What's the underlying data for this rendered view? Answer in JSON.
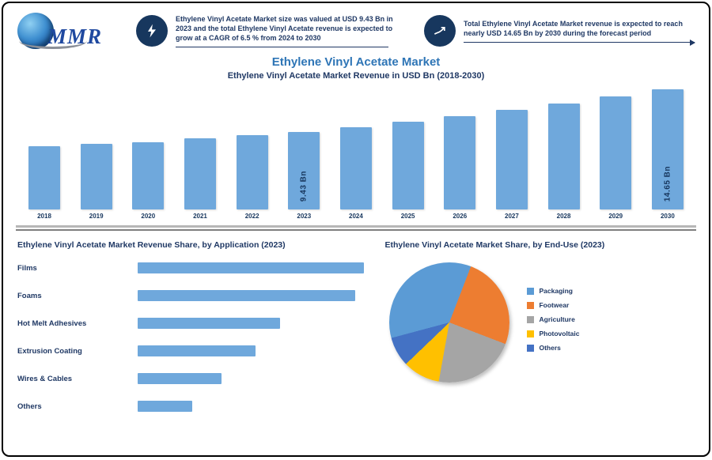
{
  "brand": {
    "logo_text": "MMR"
  },
  "header": {
    "highlight1": "Ethylene Vinyl Acetate Market size was valued at USD 9.43 Bn in 2023 and the total Ethylene Vinyl Acetate revenue is expected to grow at a CAGR of 6.5 % from 2024 to 2030",
    "highlight2": "Total Ethylene Vinyl Acetate Market revenue is expected to reach nearly USD 14.65 Bn by 2030 during the forecast period"
  },
  "title": "Ethylene Vinyl Acetate Market",
  "chart_data": [
    {
      "type": "bar",
      "title": "Ethylene Vinyl Acetate Market Revenue in USD Bn (2018-2030)",
      "categories": [
        "2018",
        "2019",
        "2020",
        "2021",
        "2022",
        "2023",
        "2024",
        "2025",
        "2026",
        "2027",
        "2028",
        "2029",
        "2030"
      ],
      "values": [
        7.7,
        7.99,
        8.24,
        8.68,
        9.05,
        9.43,
        10.04,
        10.7,
        11.39,
        12.13,
        12.92,
        13.76,
        14.65
      ],
      "ylabel": "Revenue (USD Bn)",
      "ylim": [
        0,
        16
      ],
      "grid": false,
      "bar_color": "#6FA8DC",
      "callouts": [
        {
          "category": "2023",
          "text": "9.43 Bn"
        },
        {
          "category": "2030",
          "text": "14.65 Bn"
        }
      ]
    },
    {
      "type": "bar",
      "orientation": "horizontal",
      "title": "Ethylene Vinyl Acetate Market Revenue Share, by Application (2023)",
      "categories": [
        "Films",
        "Foams",
        "Hot Melt Adhesives",
        "Extrusion Coating",
        "Wires & Cables",
        "Others"
      ],
      "values": [
        100,
        96,
        63,
        52,
        37,
        24
      ],
      "note": "relative share, value axis not shown",
      "bar_color": "#6FA8DC"
    },
    {
      "type": "pie",
      "title": "Ethylene Vinyl Acetate Market Share, by End-Use (2023)",
      "labels": [
        "Packaging",
        "Footwear",
        "Agriculture",
        "Photovoltaic",
        "Others"
      ],
      "values": [
        35,
        25,
        22,
        10,
        8
      ],
      "colors": [
        "#5B9BD5",
        "#ED7D31",
        "#A5A5A5",
        "#FFC000",
        "#4472C4"
      ],
      "rotation": 255,
      "legend_position": "right"
    }
  ]
}
